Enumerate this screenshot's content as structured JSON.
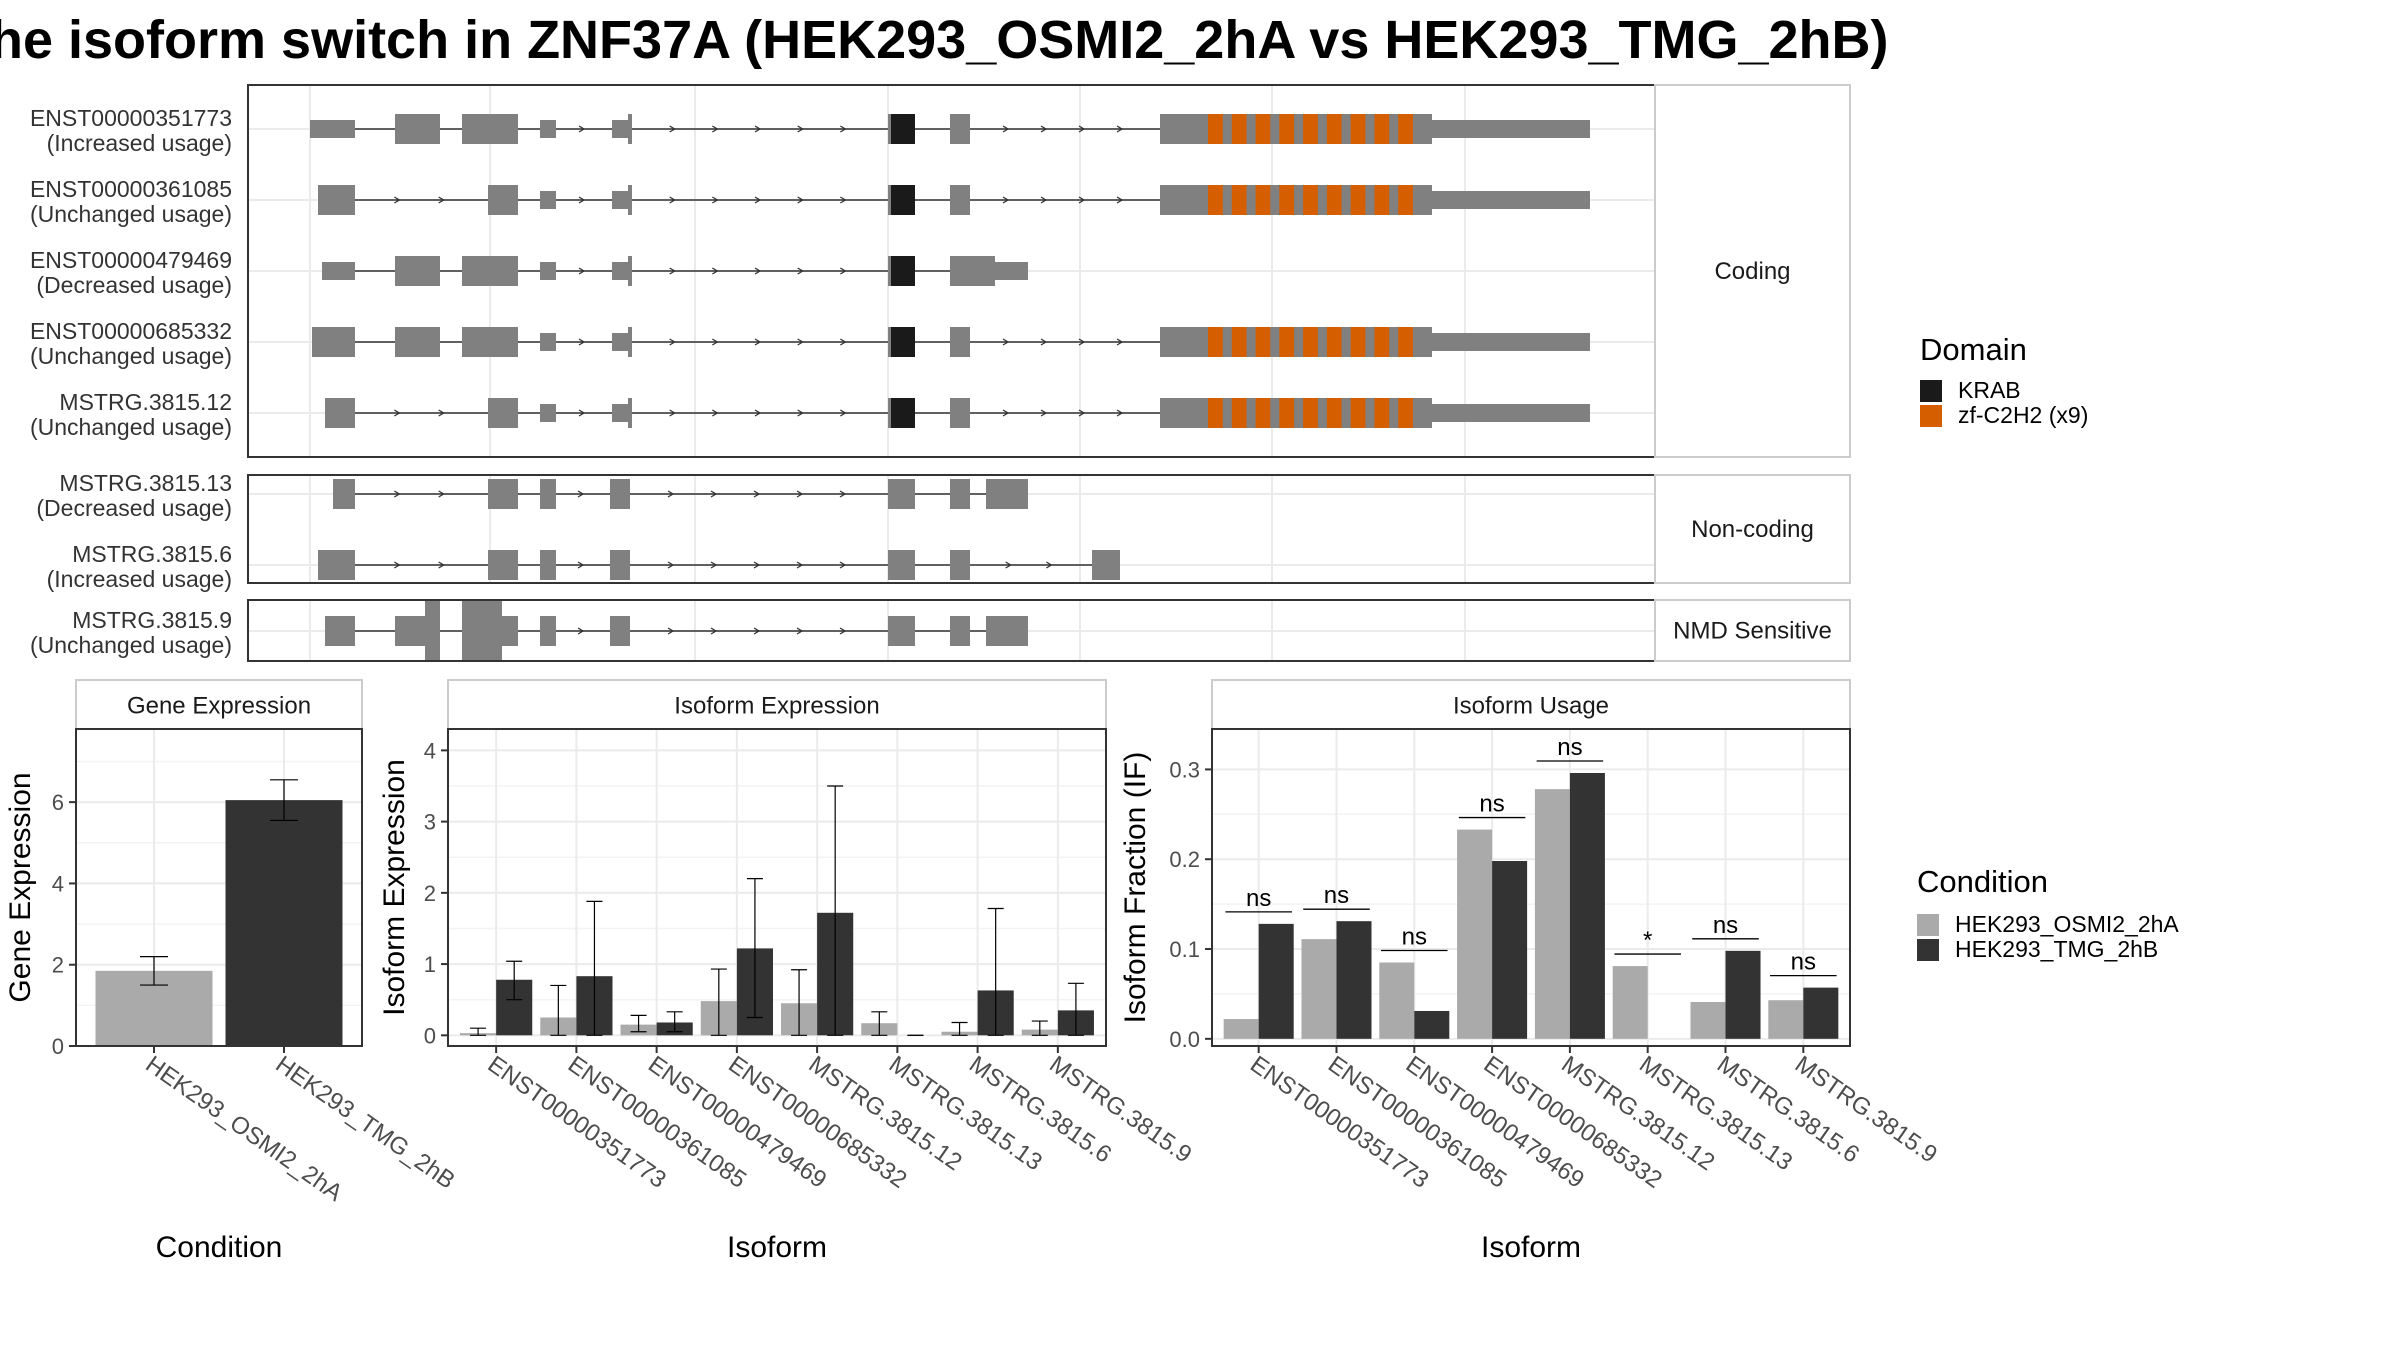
{
  "title": "he isoform switch in ZNF37A (HEK293_OSMI2_2hA vs HEK293_TMG_2hB)",
  "colors": {
    "exon": "#808080",
    "krab": "#1a1a1a",
    "zf": "#d55e00",
    "cond1": "#aaaaaa",
    "cond2": "#333333",
    "grid": "#ebebeb",
    "panel_border": "#333333",
    "strip_border": "#cccccc"
  },
  "isoform_structure": {
    "groups": [
      {
        "label": "Coding",
        "transcripts": [
          {
            "id": "ENST00000351773",
            "usage": "(Increased usage)"
          },
          {
            "id": "ENST00000361085",
            "usage": "(Unchanged usage)"
          },
          {
            "id": "ENST00000479469",
            "usage": "(Decreased usage)"
          },
          {
            "id": "ENST00000685332",
            "usage": "(Unchanged usage)"
          },
          {
            "id": "MSTRG.3815.12",
            "usage": "(Unchanged usage)"
          }
        ]
      },
      {
        "label": "Non-coding",
        "transcripts": [
          {
            "id": "MSTRG.3815.13",
            "usage": "(Decreased usage)"
          },
          {
            "id": "MSTRG.3815.6",
            "usage": "(Increased usage)"
          }
        ]
      },
      {
        "label": "NMD Sensitive",
        "transcripts": [
          {
            "id": "MSTRG.3815.9",
            "usage": "(Unchanged usage)"
          }
        ]
      }
    ]
  },
  "domain_legend": {
    "title": "Domain",
    "items": [
      {
        "label": "KRAB",
        "color": "#1a1a1a"
      },
      {
        "label": "zf-C2H2 (x9)",
        "color": "#d55e00"
      }
    ]
  },
  "condition_legend": {
    "title": "Condition",
    "items": [
      {
        "label": "HEK293_OSMI2_2hA",
        "color": "#aaaaaa"
      },
      {
        "label": "HEK293_TMG_2hB",
        "color": "#333333"
      }
    ]
  },
  "chart_data": [
    {
      "type": "bar",
      "title": "Gene Expression",
      "xlabel": "Condition",
      "ylabel": "Gene Expression",
      "categories": [
        "HEK293_OSMI2_2hA",
        "HEK293_TMG_2hB"
      ],
      "values": [
        1.85,
        6.05
      ],
      "errors": [
        [
          1.5,
          2.2
        ],
        [
          5.55,
          6.55
        ]
      ],
      "ylim": [
        0,
        7.8
      ],
      "yticks": [
        0,
        2,
        4,
        6
      ],
      "grid": true
    },
    {
      "type": "bar",
      "title": "Isoform Expression",
      "xlabel": "Isoform",
      "ylabel": "Isoform Expression",
      "categories": [
        "ENST00000351773",
        "ENST00000361085",
        "ENST00000479469",
        "ENST00000685332",
        "MSTRG.3815.12",
        "MSTRG.3815.13",
        "MSTRG.3815.6",
        "MSTRG.3815.9"
      ],
      "series": [
        {
          "name": "HEK293_OSMI2_2hA",
          "values": [
            0.03,
            0.25,
            0.15,
            0.48,
            0.45,
            0.17,
            0.05,
            0.08
          ],
          "errors": [
            [
              0.0,
              0.1
            ],
            [
              0.0,
              0.7
            ],
            [
              0.05,
              0.28
            ],
            [
              0.0,
              0.93
            ],
            [
              0.0,
              0.92
            ],
            [
              0.0,
              0.33
            ],
            [
              0.0,
              0.18
            ],
            [
              0.0,
              0.2
            ]
          ]
        },
        {
          "name": "HEK293_TMG_2hB",
          "values": [
            0.78,
            0.83,
            0.18,
            1.22,
            1.72,
            0.0,
            0.63,
            0.35
          ],
          "errors": [
            [
              0.5,
              1.04
            ],
            [
              0.0,
              1.88
            ],
            [
              0.05,
              0.33
            ],
            [
              0.25,
              2.2
            ],
            [
              0.0,
              3.5
            ],
            [
              0.0,
              0.0
            ],
            [
              0.0,
              1.78
            ],
            [
              0.0,
              0.73
            ]
          ]
        }
      ],
      "ylim": [
        -0.15,
        4.3
      ],
      "yticks": [
        0,
        1,
        2,
        3,
        4
      ],
      "grid": true
    },
    {
      "type": "bar",
      "title": "Isoform Usage",
      "xlabel": "Isoform",
      "ylabel": "Isoform Fraction (IF)",
      "categories": [
        "ENST00000351773",
        "ENST00000361085",
        "ENST00000479469",
        "ENST00000685332",
        "MSTRG.3815.12",
        "MSTRG.3815.13",
        "MSTRG.3815.6",
        "MSTRG.3815.9"
      ],
      "series": [
        {
          "name": "HEK293_OSMI2_2hA",
          "values": [
            0.022,
            0.111,
            0.085,
            0.233,
            0.278,
            0.081,
            0.041,
            0.043
          ]
        },
        {
          "name": "HEK293_TMG_2hB",
          "values": [
            0.128,
            0.131,
            0.031,
            0.198,
            0.296,
            0.0,
            0.098,
            0.057
          ]
        }
      ],
      "significance": [
        "ns",
        "ns",
        "ns",
        "ns",
        "ns",
        "*",
        "ns",
        "ns"
      ],
      "ylim": [
        -0.008,
        0.345
      ],
      "yticks": [
        0.0,
        0.1,
        0.2,
        0.3
      ],
      "ytick_labels": [
        "0.0",
        "0.1",
        "0.2",
        "0.3"
      ],
      "grid": true
    }
  ]
}
